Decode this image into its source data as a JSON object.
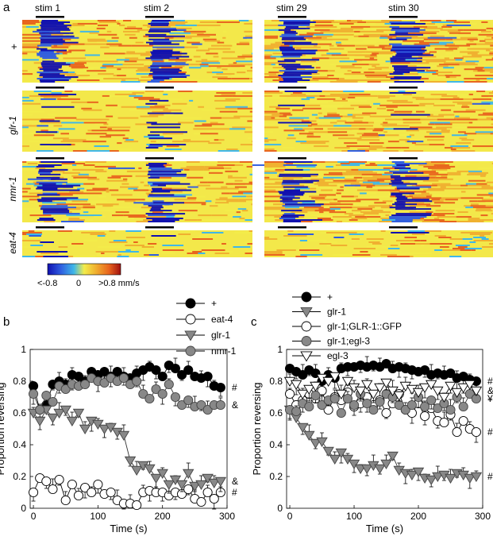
{
  "panel_a": {
    "letter": "a",
    "stim_labels": [
      "stim 1",
      "stim 2",
      "stim 29",
      "stim 30"
    ],
    "genotypes": [
      "+",
      "glr-1",
      "nmr-1",
      "eat-4"
    ],
    "colorbar": {
      "min_label": "<-0.8",
      "mid_label": "0",
      "max_label": ">0.8 mm/s",
      "colors": [
        "#1010b0",
        "#2f5de0",
        "#3fb7e8",
        "#f3ec4a",
        "#f0b030",
        "#e8641e",
        "#a01010"
      ]
    }
  },
  "chart_data": [
    {
      "type": "line",
      "panel": "b",
      "xlabel": "Time (s)",
      "ylabel": "Proportion reversing",
      "xlim": [
        -5,
        300
      ],
      "ylim": [
        0,
        1
      ],
      "xticks": [
        "0",
        "100",
        "200",
        "300"
      ],
      "yticks": [
        "0",
        "0.2",
        "0.4",
        "0.6",
        "0.8",
        "1"
      ],
      "x": [
        0,
        10,
        20,
        30,
        40,
        50,
        60,
        70,
        80,
        90,
        100,
        110,
        120,
        130,
        140,
        150,
        160,
        170,
        180,
        190,
        200,
        210,
        220,
        230,
        240,
        250,
        260,
        270,
        280,
        290
      ],
      "legend": [
        "+",
        "eat-4",
        "glr-1",
        "nmr-1"
      ],
      "series": [
        {
          "name": "+",
          "marker": "circle",
          "fill": "#000000",
          "stroke": "#000000",
          "values": [
            0.77,
            0.62,
            0.65,
            0.78,
            0.8,
            0.78,
            0.84,
            0.83,
            0.8,
            0.86,
            0.84,
            0.86,
            0.83,
            0.86,
            0.83,
            0.82,
            0.85,
            0.87,
            0.89,
            0.87,
            0.83,
            0.9,
            0.88,
            0.84,
            0.87,
            0.83,
            0.82,
            0.83,
            0.77,
            0.76
          ]
        },
        {
          "name": "eat-4",
          "marker": "circle",
          "fill": "#ffffff",
          "stroke": "#000000",
          "values": [
            0.1,
            0.19,
            0.17,
            0.12,
            0.18,
            0.05,
            0.15,
            0.08,
            0.13,
            0.1,
            0.15,
            0.09,
            0.1,
            0.05,
            0.03,
            0.03,
            0.02,
            0.1,
            0.11,
            0.1,
            0.1,
            0.08,
            0.1,
            0.09,
            0.12,
            0.06,
            0.04,
            0.1,
            0.06,
            0.1
          ]
        },
        {
          "name": "glr-1",
          "marker": "triangle-down",
          "fill": "#888888",
          "stroke": "#444444",
          "values": [
            0.6,
            0.55,
            0.62,
            0.57,
            0.6,
            0.62,
            0.55,
            0.6,
            0.5,
            0.55,
            0.53,
            0.5,
            0.51,
            0.48,
            0.46,
            0.3,
            0.24,
            0.27,
            0.25,
            0.19,
            0.22,
            0.15,
            0.18,
            0.15,
            0.22,
            0.14,
            0.15,
            0.19,
            0.16,
            0.17
          ]
        },
        {
          "name": "nmr-1",
          "marker": "circle",
          "fill": "#888888",
          "stroke": "#444444",
          "values": [
            0.72,
            0.62,
            0.71,
            0.67,
            0.77,
            0.75,
            0.78,
            0.77,
            0.78,
            0.82,
            0.8,
            0.79,
            0.82,
            0.8,
            0.82,
            0.78,
            0.8,
            0.72,
            0.69,
            0.75,
            0.72,
            0.78,
            0.7,
            0.65,
            0.68,
            0.64,
            0.65,
            0.62,
            0.65,
            0.65
          ]
        }
      ],
      "end_annotations": [
        "#",
        "#",
        "&",
        "&"
      ]
    },
    {
      "type": "line",
      "panel": "c",
      "xlabel": "Time (s)",
      "ylabel": "Proportion reversing",
      "xlim": [
        -5,
        300
      ],
      "ylim": [
        0,
        1
      ],
      "xticks": [
        "0",
        "100",
        "200",
        "300"
      ],
      "yticks": [
        "0",
        "0.2",
        "0.4",
        "0.6",
        "0.8",
        "1"
      ],
      "x": [
        0,
        10,
        20,
        30,
        40,
        50,
        60,
        70,
        80,
        90,
        100,
        110,
        120,
        130,
        140,
        150,
        160,
        170,
        180,
        190,
        200,
        210,
        220,
        230,
        240,
        250,
        260,
        270,
        280,
        290
      ],
      "legend": [
        "+",
        "glr-1",
        "glr-1;GLR-1::GFP",
        "glr-1;egl-3",
        "egl-3"
      ],
      "series": [
        {
          "name": "+",
          "marker": "circle",
          "fill": "#000000",
          "stroke": "#000000",
          "values": [
            0.88,
            0.86,
            0.84,
            0.87,
            0.85,
            0.8,
            0.84,
            0.82,
            0.88,
            0.89,
            0.89,
            0.9,
            0.89,
            0.9,
            0.89,
            0.91,
            0.88,
            0.89,
            0.88,
            0.87,
            0.86,
            0.87,
            0.84,
            0.85,
            0.84,
            0.85,
            0.82,
            0.83,
            0.81,
            0.8
          ]
        },
        {
          "name": "glr-1",
          "marker": "triangle-down",
          "fill": "#888888",
          "stroke": "#444444",
          "values": [
            0.62,
            0.57,
            0.51,
            0.46,
            0.41,
            0.42,
            0.36,
            0.31,
            0.35,
            0.31,
            0.28,
            0.25,
            0.25,
            0.27,
            0.25,
            0.28,
            0.33,
            0.24,
            0.22,
            0.21,
            0.23,
            0.19,
            0.18,
            0.2,
            0.21,
            0.19,
            0.22,
            0.21,
            0.19,
            0.2
          ]
        },
        {
          "name": "glr-1;GLR-1::GFP",
          "marker": "circle",
          "fill": "#ffffff",
          "stroke": "#000000",
          "values": [
            0.72,
            0.65,
            0.68,
            0.72,
            0.69,
            0.74,
            0.62,
            0.7,
            0.68,
            0.73,
            0.64,
            0.66,
            0.7,
            0.65,
            0.68,
            0.6,
            0.66,
            0.72,
            0.62,
            0.6,
            0.66,
            0.58,
            0.63,
            0.55,
            0.54,
            0.59,
            0.48,
            0.55,
            0.5,
            0.48
          ]
        },
        {
          "name": "glr-1;egl-3",
          "marker": "circle",
          "fill": "#888888",
          "stroke": "#444444",
          "values": [
            0.62,
            0.61,
            0.66,
            0.64,
            0.71,
            0.65,
            0.68,
            0.69,
            0.6,
            0.69,
            0.65,
            0.72,
            0.66,
            0.62,
            0.67,
            0.72,
            0.7,
            0.65,
            0.62,
            0.65,
            0.7,
            0.64,
            0.68,
            0.63,
            0.66,
            0.62,
            0.7,
            0.64,
            0.72,
            0.69
          ]
        },
        {
          "name": "egl-3",
          "marker": "triangle-down-open",
          "fill": "#ffffff",
          "stroke": "#000000",
          "values": [
            0.8,
            0.78,
            0.72,
            0.75,
            0.77,
            0.82,
            0.8,
            0.83,
            0.72,
            0.8,
            0.76,
            0.74,
            0.78,
            0.72,
            0.76,
            0.79,
            0.74,
            0.71,
            0.77,
            0.75,
            0.73,
            0.76,
            0.78,
            0.74,
            0.7,
            0.77,
            0.73,
            0.76,
            0.78,
            0.74
          ]
        }
      ],
      "end_annotations": [
        "#",
        "#",
        "#",
        "¥",
        "&"
      ]
    }
  ]
}
